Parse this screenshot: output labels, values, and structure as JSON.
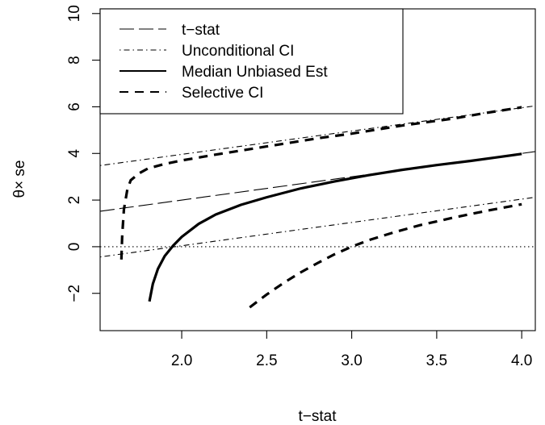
{
  "chart_data": {
    "type": "line",
    "title": "",
    "xlabel": "t−stat",
    "ylabel": "θ× se",
    "xlim": [
      1.52,
      4.08
    ],
    "ylim": [
      -3.6,
      10.2
    ],
    "x_ticks": [
      2.0,
      2.5,
      3.0,
      3.5,
      4.0
    ],
    "x_tick_labels": [
      "2.0",
      "2.5",
      "3.0",
      "3.5",
      "4.0"
    ],
    "y_ticks": [
      -2,
      0,
      2,
      4,
      6,
      8,
      10
    ],
    "y_tick_labels": [
      "−2",
      "0",
      "2",
      "4",
      "6",
      "8",
      "10"
    ],
    "reference_line": {
      "y": 0,
      "style": "dotted"
    },
    "legend": {
      "position": "top-left",
      "entries": [
        {
          "label": "t−stat",
          "style": "longdash"
        },
        {
          "label": "Unconditional CI",
          "style": "dotdash"
        },
        {
          "label": "Median Unbiased Est",
          "style": "solid"
        },
        {
          "label": "Selective CI",
          "style": "dashed"
        }
      ]
    },
    "series": [
      {
        "name": "t−stat",
        "style": "longdash",
        "x": [
          1.52,
          4.08
        ],
        "y": [
          1.52,
          4.08
        ]
      },
      {
        "name": "Unconditional CI",
        "style": "dotdash",
        "x": [
          1.52,
          4.08
        ],
        "y": [
          3.48,
          6.04
        ]
      },
      {
        "name": "Unconditional CI",
        "style": "dotdash",
        "x": [
          1.52,
          4.08
        ],
        "y": [
          -0.44,
          2.12
        ]
      },
      {
        "name": "Median Unbiased Est",
        "style": "solid",
        "x": [
          1.81,
          1.83,
          1.86,
          1.9,
          1.95,
          2.0,
          2.1,
          2.2,
          2.35,
          2.5,
          2.7,
          2.9,
          3.1,
          3.3,
          3.5,
          3.7,
          3.85,
          4.0
        ],
        "y": [
          -2.35,
          -1.6,
          -0.95,
          -0.4,
          0.05,
          0.42,
          0.98,
          1.38,
          1.8,
          2.12,
          2.5,
          2.8,
          3.07,
          3.3,
          3.5,
          3.68,
          3.83,
          3.98
        ]
      },
      {
        "name": "Selective CI",
        "style": "dashed",
        "x": [
          1.645,
          1.65,
          1.66,
          1.68,
          1.7,
          1.75,
          1.8,
          1.9,
          2.0,
          2.2,
          2.5,
          2.8,
          3.0,
          3.3,
          3.6,
          3.8,
          4.0
        ],
        "y": [
          -0.55,
          0.5,
          1.6,
          2.45,
          2.85,
          3.15,
          3.35,
          3.55,
          3.7,
          3.95,
          4.3,
          4.65,
          4.85,
          5.2,
          5.5,
          5.75,
          5.98
        ]
      },
      {
        "name": "Selective CI",
        "style": "dashed",
        "x": [
          2.4,
          2.5,
          2.6,
          2.7,
          2.8,
          2.9,
          3.0,
          3.1,
          3.25,
          3.4,
          3.6,
          3.8,
          4.0
        ],
        "y": [
          -2.6,
          -2.05,
          -1.55,
          -1.1,
          -0.7,
          -0.32,
          0.0,
          0.28,
          0.62,
          0.92,
          1.25,
          1.55,
          1.82
        ]
      }
    ]
  }
}
